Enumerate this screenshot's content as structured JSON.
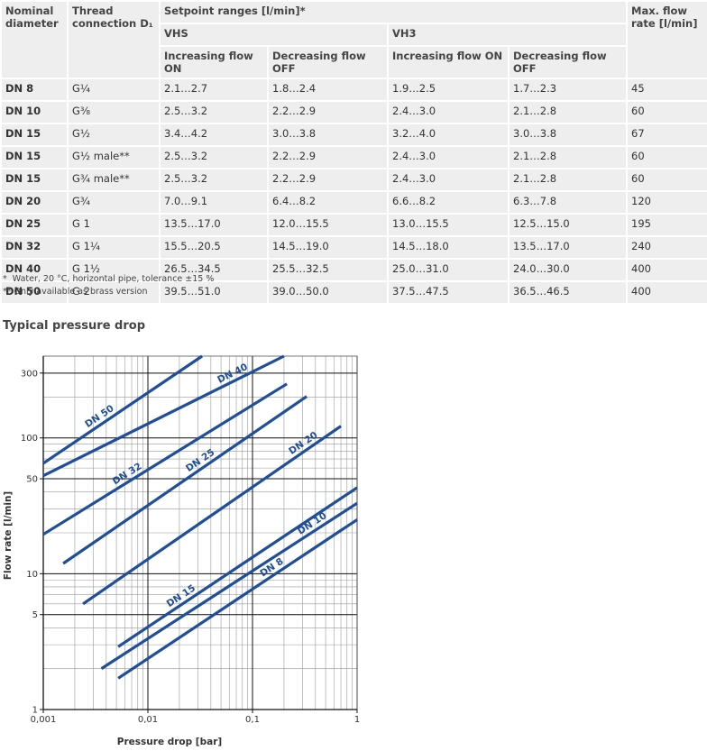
{
  "table": {
    "header": {
      "diameter": "Nominal diameter",
      "thread": "Thread connection D₁",
      "setpoint": "Setpoint ranges [l/min]*",
      "max": "Max. flow rate [l/min]",
      "groups": [
        "VHS",
        "VH3"
      ],
      "columns": [
        "Increasing flow ON",
        "Decreasing flow OFF",
        "Increasing flow ON",
        "Decreasing flow OFF"
      ]
    },
    "rows": [
      [
        "DN 8",
        "G¼",
        "2.1…2.7",
        "1.8…2.4",
        "1.9…2.5",
        "1.7…2.3",
        45
      ],
      [
        "DN 10",
        "G⅜",
        "2.5…3.2",
        "2.2…2.9",
        "2.4…3.0",
        "2.1…2.8",
        60
      ],
      [
        "DN 15",
        "G½",
        "3.4…4.2",
        "3.0…3.8",
        "3.2…4.0",
        "3.0…3.8",
        67
      ],
      [
        "DN 15",
        "G½ male**",
        "2.5…3.2",
        "2.2…2.9",
        "2.4…3.0",
        "2.1…2.8",
        60
      ],
      [
        "DN 15",
        "G¾ male**",
        "2.5…3.2",
        "2.2…2.9",
        "2.4…3.0",
        "2.1…2.8",
        60
      ],
      [
        "DN 20",
        "G¾",
        "7.0…9.1",
        "6.4…8.2",
        "6.6…8.2",
        "6.3…7.8",
        120
      ],
      [
        "DN 25",
        "G 1",
        "13.5…17.0",
        "12.0…15.5",
        "13.0…15.5",
        "12.5…15.0",
        195
      ],
      [
        "DN 32",
        "G 1¼",
        "15.5…20.5",
        "14.5…19.0",
        "14.5…18.0",
        "13.5…17.0",
        240
      ],
      [
        "DN 40",
        "G 1½",
        "26.5…34.5",
        "25.5…32.5",
        "25.0…31.0",
        "24.0…30.0",
        400
      ],
      [
        "DN 50",
        "G 2",
        "39.5…51.0",
        "39.0…50.0",
        "37.5…47.5",
        "36.5…46.5",
        400
      ]
    ]
  },
  "footnotes": [
    "*  Water, 20 °C, horizontal pipe, tolerance ±15 %",
    "** Only available as brass version"
  ],
  "chart_data": {
    "type": "line",
    "title": "Typical pressure drop",
    "x_label": "Pressure drop [bar]",
    "y_label": "Flow rate [l/min]",
    "log_x": true,
    "log_y": true,
    "grid": true,
    "xlim": [
      0.001,
      1
    ],
    "ylim": [
      1,
      400
    ],
    "xticks": [
      {
        "value": 0.001,
        "label": "0,001"
      },
      {
        "value": 0.01,
        "label": "0,01"
      },
      {
        "value": 0.1,
        "label": "0,1"
      },
      1
    ],
    "yticks": [
      1,
      5,
      10,
      50,
      100,
      300
    ],
    "series": [
      {
        "name": "DN 50",
        "color": "#1f4e9a",
        "x": [
          0.001,
          0.033
        ],
        "values": [
          65,
          400
        ]
      },
      {
        "name": "DN 40",
        "color": "#1f4e9a",
        "x": [
          0.001,
          0.2
        ],
        "values": [
          52.6,
          400
        ]
      },
      {
        "name": "DN 32",
        "color": "#1f4e9a",
        "x": [
          0.001,
          0.213
        ],
        "values": [
          19.5,
          250
        ]
      },
      {
        "name": "DN 25",
        "color": "#1f4e9a",
        "x": [
          0.00155,
          0.33
        ],
        "values": [
          11.9,
          202
        ]
      },
      {
        "name": "DN 20",
        "color": "#1f4e9a",
        "x": [
          0.0024,
          0.7
        ],
        "values": [
          6.0,
          122
        ]
      },
      {
        "name": "DN 15",
        "color": "#1f4e9a",
        "x": [
          0.0052,
          1
        ],
        "values": [
          2.9,
          43
        ]
      },
      {
        "name": "DN 10",
        "color": "#1f4e9a",
        "x": [
          0.0036,
          1
        ],
        "values": [
          2.0,
          33
        ]
      },
      {
        "name": "DN 8",
        "color": "#1f4e9a",
        "x": [
          0.0052,
          1
        ],
        "values": [
          1.7,
          25
        ]
      }
    ]
  }
}
